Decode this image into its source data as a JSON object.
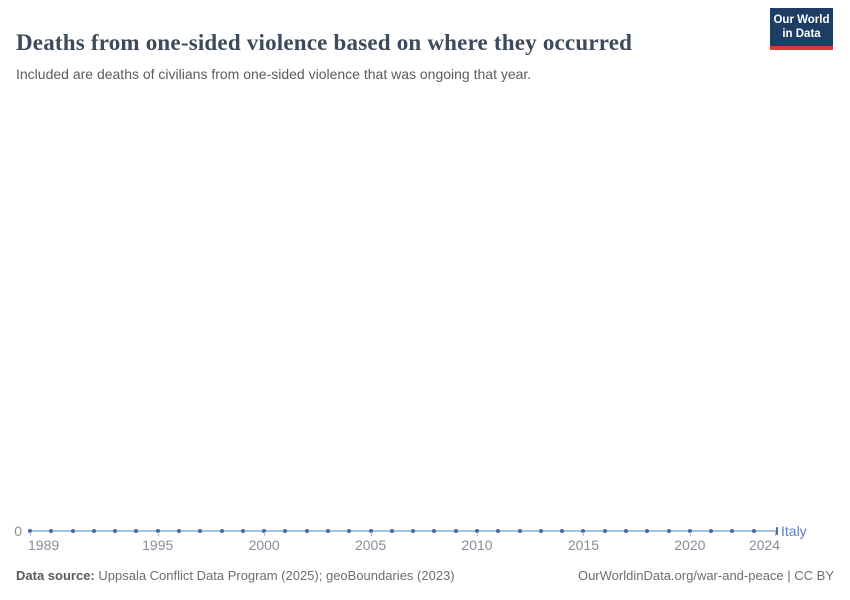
{
  "header": {
    "title": "Deaths from one-sided violence based on where they occurred",
    "subtitle": "Included are deaths of civilians from one-sided violence that was ongoing that year.",
    "logo": {
      "line1": "Our World",
      "line2": "in Data"
    }
  },
  "chart_data": {
    "type": "line",
    "title": "Deaths from one-sided violence based on where they occurred",
    "x": [
      1989,
      1990,
      1991,
      1992,
      1993,
      1994,
      1995,
      1996,
      1997,
      1998,
      1999,
      2000,
      2001,
      2002,
      2003,
      2004,
      2005,
      2006,
      2007,
      2008,
      2009,
      2010,
      2011,
      2012,
      2013,
      2014,
      2015,
      2016,
      2017,
      2018,
      2019,
      2020,
      2021,
      2022,
      2023,
      2024
    ],
    "series": [
      {
        "name": "Italy",
        "values": [
          0,
          0,
          0,
          0,
          0,
          0,
          0,
          0,
          0,
          0,
          0,
          0,
          0,
          0,
          0,
          0,
          0,
          0,
          0,
          0,
          0,
          0,
          0,
          0,
          0,
          0,
          0,
          0,
          0,
          0,
          0,
          0,
          0,
          0,
          0,
          0
        ]
      }
    ],
    "x_ticks": [
      1989,
      1995,
      2000,
      2005,
      2010,
      2015,
      2020,
      2024
    ],
    "y_ticks": [
      0
    ],
    "y_tick_label": "0",
    "xlim": [
      1989,
      2024
    ],
    "ylim": [
      0,
      0
    ],
    "grid": false,
    "legend_position": "end-of-line",
    "entity_label": "Italy"
  },
  "footer": {
    "source_label": "Data source:",
    "source_text": " Uppsala Conflict Data Program (2025); geoBoundaries (2023)",
    "link_text": "OurWorldinData.org/war-and-peace | CC BY"
  },
  "colors": {
    "line": "#a6c0df",
    "marker": "#4a69a2",
    "entity_label": "#5b7fbd",
    "axis_text": "#888e98",
    "title": "#3d4a5c",
    "logo_bg": "#1d3d63",
    "logo_red": "#d73c34"
  }
}
